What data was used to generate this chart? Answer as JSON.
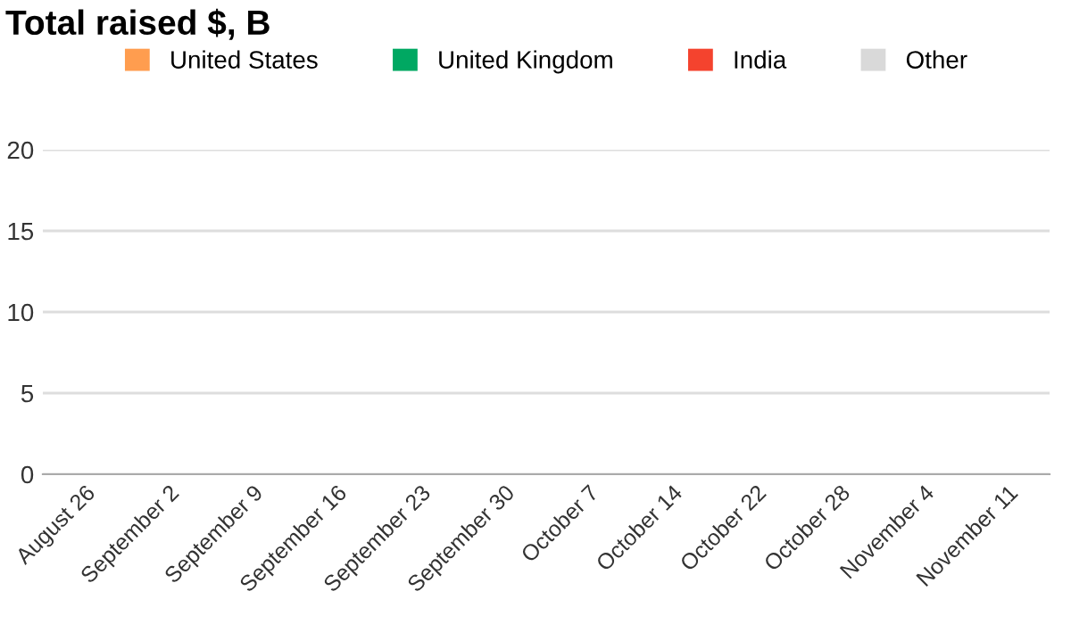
{
  "chart_data": {
    "type": "bar",
    "title": "Total raised $, B",
    "categories": [
      "August 26",
      "September 2",
      "September 9",
      "September 16",
      "September 23",
      "September 30",
      "October 7",
      "October 14",
      "October 22",
      "October 28",
      "November 4",
      "November 11"
    ],
    "series": [
      {
        "name": "United States",
        "color": "#ff9d4f",
        "values": [
          0,
          0,
          0,
          0,
          0,
          0,
          0,
          0,
          0,
          0,
          0,
          0
        ]
      },
      {
        "name": "United Kingdom",
        "color": "#00a862",
        "values": [
          0,
          0,
          0,
          0,
          0,
          0,
          0,
          0,
          0,
          0,
          0,
          0
        ]
      },
      {
        "name": "India",
        "color": "#f4432e",
        "values": [
          0,
          0,
          0,
          0,
          0,
          0,
          0,
          0,
          0,
          0,
          0,
          0
        ]
      },
      {
        "name": "Other",
        "color": "#d9d9d9",
        "values": [
          0,
          0,
          0,
          0,
          0,
          0,
          0,
          0,
          0,
          0,
          0,
          0
        ]
      }
    ],
    "ylim": [
      0,
      20
    ],
    "yticks": [
      0,
      5,
      10,
      15,
      20
    ],
    "grid": "y",
    "legend": "top"
  }
}
